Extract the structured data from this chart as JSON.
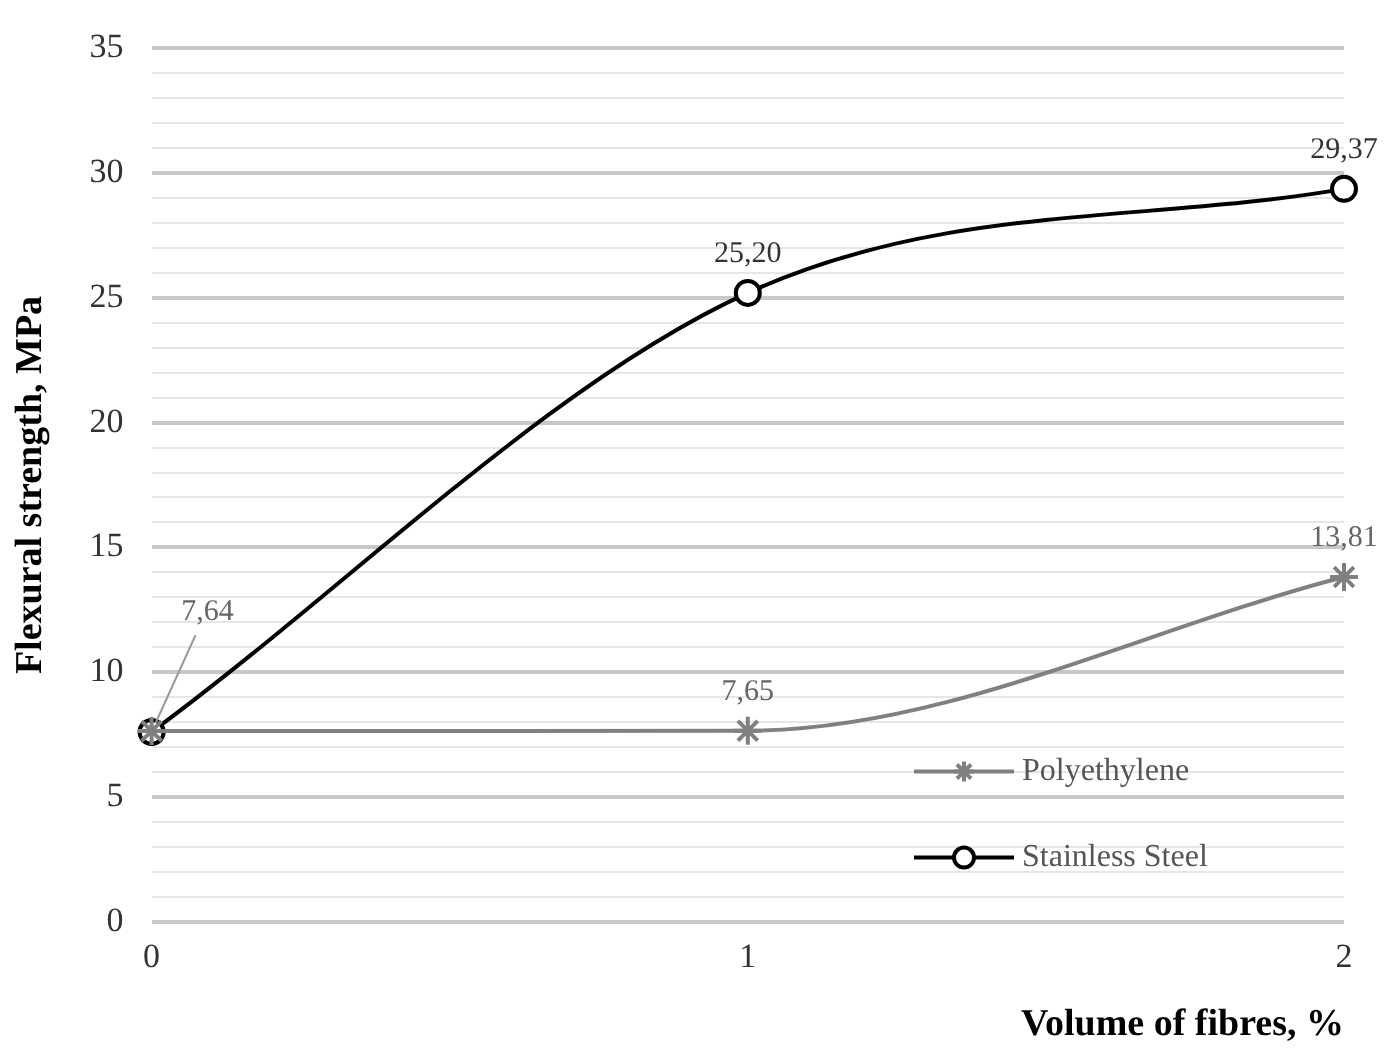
{
  "chart_data": {
    "type": "line",
    "xlabel": "Volume of fibres, %",
    "ylabel": "Flexural strength, MPa",
    "categories": [
      "0",
      "1",
      "2"
    ],
    "series": [
      {
        "name": "Polyethylene",
        "color": "#808080",
        "marker": "cross",
        "values": [
          7.64,
          7.65,
          13.81
        ],
        "value_labels": [
          "7,64",
          "7,65",
          "13,81"
        ]
      },
      {
        "name": "Stainless Steel",
        "color": "#000000",
        "marker": "circle",
        "values": [
          7.6,
          25.2,
          29.37
        ],
        "value_labels": [
          null,
          "25,20",
          "29,37"
        ]
      }
    ],
    "ylim": [
      0,
      35
    ],
    "yticks": [
      0,
      {
        "value": 1,
        "label": null
      },
      {
        "value": 2,
        "label": null
      },
      {
        "value": 3,
        "label": null
      },
      {
        "value": 4,
        "label": null
      },
      5,
      {
        "value": 6,
        "label": null
      },
      {
        "value": 7,
        "label": null
      },
      {
        "value": 8,
        "label": null
      },
      {
        "value": 9,
        "label": null
      },
      10,
      {
        "value": 11,
        "label": null
      },
      {
        "value": 12,
        "label": null
      },
      {
        "value": 13,
        "label": null
      },
      {
        "value": 14,
        "label": null
      },
      15,
      {
        "value": 16,
        "label": null
      },
      {
        "value": 17,
        "label": null
      },
      {
        "value": 18,
        "label": null
      },
      {
        "value": 19,
        "label": null
      },
      20,
      {
        "value": 21,
        "label": null
      },
      {
        "value": 22,
        "label": null
      },
      {
        "value": 23,
        "label": null
      },
      {
        "value": 24,
        "label": null
      },
      25,
      {
        "value": 26,
        "label": null
      },
      {
        "value": 27,
        "label": null
      },
      {
        "value": 28,
        "label": null
      },
      {
        "value": 29,
        "label": null
      },
      30,
      {
        "value": 31,
        "label": null
      },
      {
        "value": 32,
        "label": null
      },
      {
        "value": 33,
        "label": null
      },
      {
        "value": 34,
        "label": null
      },
      35
    ],
    "grid": "y",
    "legend": "bottom right",
    "line_style": "solid"
  }
}
